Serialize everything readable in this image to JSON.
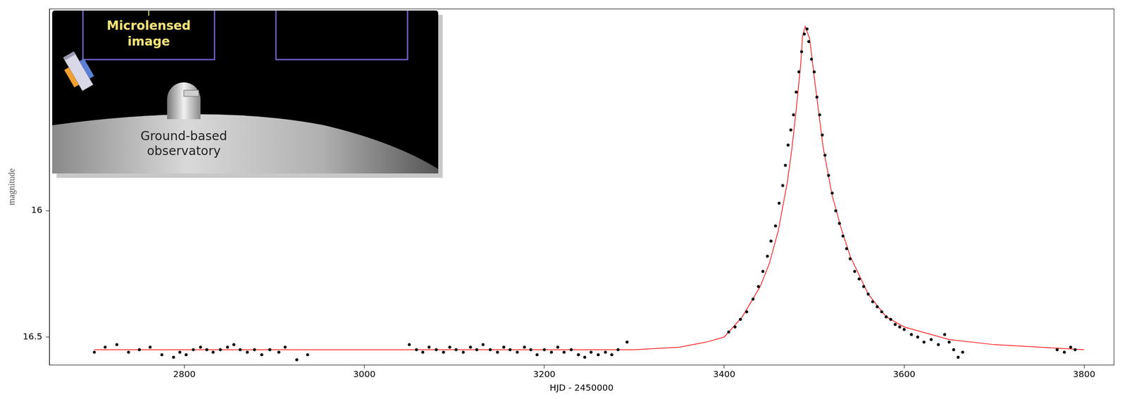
{
  "chart_data": {
    "type": "scatter",
    "x_label": "HJD - 2450000",
    "y_label": "magnitude",
    "xlim": [
      2650,
      3833
    ],
    "ylim": [
      16.61,
      15.2
    ],
    "xticks": [
      2800,
      3000,
      3200,
      3400,
      3600,
      3800
    ],
    "yticks": [
      16,
      16.5
    ],
    "grid": false,
    "series": [
      {
        "type": "scatter",
        "color": "#000000",
        "marker": "circle",
        "x": [
          2700,
          2712,
          2725,
          2738,
          2750,
          2762,
          2775,
          2788,
          2795,
          2802,
          2810,
          2818,
          2825,
          2832,
          2840,
          2848,
          2855,
          2862,
          2870,
          2878,
          2886,
          2895,
          2905,
          2912,
          2925,
          2937,
          3050,
          3058,
          3065,
          3072,
          3080,
          3088,
          3095,
          3102,
          3110,
          3118,
          3125,
          3132,
          3140,
          3148,
          3155,
          3162,
          3170,
          3178,
          3185,
          3192,
          3200,
          3208,
          3215,
          3222,
          3230,
          3238,
          3245,
          3252,
          3260,
          3268,
          3275,
          3282,
          3292,
          3405,
          3412,
          3418,
          3425,
          3432,
          3438,
          3443,
          3448,
          3452,
          3457,
          3461,
          3465,
          3468,
          3471,
          3474,
          3477,
          3480,
          3483,
          3486,
          3489,
          3492,
          3494,
          3497,
          3500,
          3503,
          3506,
          3509,
          3512,
          3516,
          3520,
          3524,
          3528,
          3532,
          3536,
          3540,
          3545,
          3550,
          3555,
          3560,
          3565,
          3570,
          3575,
          3580,
          3585,
          3590,
          3595,
          3600,
          3608,
          3615,
          3622,
          3630,
          3638,
          3645,
          3650,
          3655,
          3660,
          3665,
          3770,
          3778,
          3785,
          3790
        ],
        "values": [
          16.56,
          16.54,
          16.53,
          16.56,
          16.55,
          16.54,
          16.57,
          16.58,
          16.56,
          16.57,
          16.55,
          16.54,
          16.55,
          16.56,
          16.55,
          16.54,
          16.53,
          16.55,
          16.56,
          16.55,
          16.57,
          16.55,
          16.56,
          16.54,
          16.59,
          16.57,
          16.53,
          16.55,
          16.56,
          16.54,
          16.55,
          16.56,
          16.54,
          16.55,
          16.56,
          16.54,
          16.55,
          16.53,
          16.55,
          16.56,
          16.54,
          16.55,
          16.56,
          16.54,
          16.55,
          16.57,
          16.55,
          16.56,
          16.54,
          16.56,
          16.55,
          16.57,
          16.58,
          16.56,
          16.57,
          16.56,
          16.57,
          16.55,
          16.52,
          16.48,
          16.46,
          16.43,
          16.4,
          16.35,
          16.3,
          16.24,
          16.18,
          16.12,
          16.06,
          15.97,
          15.9,
          15.82,
          15.74,
          15.68,
          15.62,
          15.53,
          15.45,
          15.37,
          15.3,
          15.28,
          15.33,
          15.4,
          15.45,
          15.55,
          15.62,
          15.7,
          15.78,
          15.86,
          15.93,
          16.0,
          16.05,
          16.1,
          16.15,
          16.19,
          16.24,
          16.27,
          16.3,
          16.33,
          16.36,
          16.38,
          16.4,
          16.42,
          16.43,
          16.45,
          16.46,
          16.47,
          16.49,
          16.5,
          16.52,
          16.51,
          16.53,
          16.49,
          16.52,
          16.55,
          16.58,
          16.56,
          16.55,
          16.56,
          16.54,
          16.55
        ]
      },
      {
        "type": "line",
        "color": "#ff0000",
        "line_style": "solid",
        "x": [
          2700,
          3000,
          3300,
          3350,
          3380,
          3400,
          3420,
          3440,
          3450,
          3460,
          3470,
          3475,
          3480,
          3485,
          3487,
          3490,
          3495,
          3500,
          3510,
          3520,
          3530,
          3540,
          3560,
          3580,
          3600,
          3650,
          3700,
          3800
        ],
        "values": [
          16.55,
          16.55,
          16.55,
          16.54,
          16.52,
          16.5,
          16.42,
          16.3,
          16.21,
          16.08,
          15.89,
          15.76,
          15.6,
          15.42,
          15.31,
          15.27,
          15.32,
          15.47,
          15.75,
          15.94,
          16.07,
          16.18,
          16.33,
          16.42,
          16.46,
          16.51,
          16.53,
          16.55
        ]
      }
    ]
  },
  "inset": {
    "image_label": "Microlensed image",
    "observatory_label": "Ground-based observatory"
  }
}
